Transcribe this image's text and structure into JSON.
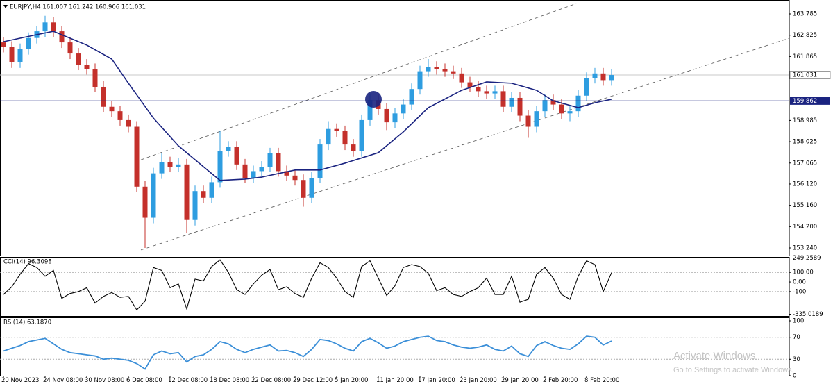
{
  "chart_data": [
    {
      "type": "candlestick",
      "title": "EURJPY,H4  161.007 161.242 160.906 161.031",
      "up_color": "#2e9de0",
      "down_color": "#c4302b",
      "xlim": [
        -0.4167,
        94.3333
      ],
      "xticks": [
        {
          "value": 0,
          "label": "20 Nov 2023"
        },
        {
          "value": 5,
          "label": "24 Nov 08:00"
        },
        {
          "value": 10,
          "label": "30 Nov 08:00"
        },
        {
          "value": 15,
          "label": "6 Dec 08:00"
        },
        {
          "value": 20,
          "label": "12 Dec 08:00"
        },
        {
          "value": 25,
          "label": "18 Dec 08:00"
        },
        {
          "value": 30,
          "label": "22 Dec 08:00"
        },
        {
          "value": 35,
          "label": "29 Dec 12:00"
        },
        {
          "value": 40,
          "label": "5 Jan 20:00"
        },
        {
          "value": 45,
          "label": "11 Jan 20:00"
        },
        {
          "value": 50,
          "label": "17 Jan 20:00"
        },
        {
          "value": 55,
          "label": "23 Jan 20:00"
        },
        {
          "value": 60,
          "label": "29 Jan 20:00"
        },
        {
          "value": 65,
          "label": "2 Feb 20:00"
        },
        {
          "value": 70,
          "label": "8 Feb 20:00"
        }
      ],
      "ylim": [
        152.896,
        164.411
      ],
      "yticks": [
        163.785,
        162.825,
        161.865,
        158.985,
        158.025,
        157.065,
        {
          "value": 156.12,
          "label": "156.120"
        },
        {
          "value": 155.16,
          "label": "155.160"
        },
        {
          "value": 154.2,
          "label": "154.200"
        },
        {
          "value": 153.24,
          "label": "153.240"
        }
      ],
      "open": [
        162.5,
        162.3,
        161.6,
        162.2,
        162.7,
        163.0,
        163.4,
        163.0,
        162.5,
        162.0,
        161.5,
        161.3,
        160.5,
        159.6,
        159.4,
        159.0,
        158.7,
        156.0,
        154.6,
        156.6,
        157.1,
        156.9,
        157.0,
        154.5,
        155.8,
        155.5,
        156.2,
        157.6,
        157.8,
        157.0,
        156.4,
        156.7,
        156.9,
        157.5,
        156.7,
        156.5,
        156.3,
        155.5,
        156.4,
        157.9,
        158.6,
        158.5,
        157.9,
        157.6,
        159.0,
        159.9,
        159.5,
        158.9,
        159.3,
        159.7,
        160.4,
        161.2,
        161.4,
        161.3,
        161.2,
        161.1,
        160.7,
        160.5,
        160.3,
        160.2,
        160.3,
        159.6,
        160.0,
        159.2,
        158.7,
        159.4,
        159.9,
        159.7,
        159.3,
        159.4,
        160.1,
        160.9,
        161.1,
        160.8
      ],
      "high": [
        162.75,
        162.55,
        162.45,
        162.95,
        163.25,
        163.7,
        163.65,
        163.25,
        162.75,
        162.25,
        161.75,
        161.55,
        160.75,
        159.85,
        159.65,
        159.25,
        158.95,
        156.25,
        156.85,
        157.5,
        157.35,
        157.3,
        157.25,
        156.05,
        156.05,
        156.45,
        158.5,
        158.05,
        158.05,
        157.25,
        156.95,
        157.15,
        157.75,
        157.75,
        156.95,
        156.75,
        156.55,
        156.65,
        158.15,
        158.95,
        158.85,
        158.75,
        158.15,
        159.25,
        160.2,
        160.15,
        159.75,
        159.55,
        159.95,
        160.65,
        161.45,
        161.75,
        161.65,
        161.55,
        161.45,
        161.35,
        160.95,
        160.75,
        160.55,
        160.55,
        160.55,
        160.25,
        160.25,
        159.45,
        159.65,
        160.15,
        160.15,
        159.95,
        159.65,
        160.35,
        161.15,
        161.35,
        161.35,
        161.3
      ],
      "low": [
        162.05,
        161.35,
        161.35,
        161.95,
        162.45,
        162.75,
        162.75,
        162.25,
        161.75,
        161.25,
        161.05,
        160.25,
        159.35,
        159.15,
        158.75,
        158.45,
        155.75,
        153.24,
        154.35,
        156.35,
        156.65,
        156.65,
        153.9,
        154.25,
        155.25,
        155.25,
        155.95,
        157.35,
        156.75,
        156.15,
        156.15,
        156.45,
        156.65,
        156.45,
        156.25,
        156.05,
        155.1,
        155.25,
        156.15,
        157.65,
        158.25,
        157.65,
        157.35,
        157.35,
        158.75,
        159.25,
        158.55,
        158.65,
        159.05,
        159.45,
        160.15,
        160.95,
        161.05,
        160.95,
        160.85,
        160.45,
        160.25,
        160.05,
        159.95,
        159.95,
        159.35,
        159.35,
        158.95,
        158.2,
        158.45,
        159.15,
        159.45,
        159.05,
        158.95,
        159.15,
        159.85,
        160.65,
        160.55,
        160.55
      ],
      "close": [
        162.3,
        161.6,
        162.2,
        162.7,
        163.0,
        163.4,
        163.0,
        162.5,
        162.0,
        161.5,
        161.3,
        160.5,
        159.6,
        159.4,
        159.0,
        158.7,
        156.0,
        154.6,
        156.6,
        157.1,
        156.9,
        157.0,
        154.5,
        155.8,
        155.5,
        156.2,
        157.6,
        157.8,
        157.0,
        156.4,
        156.7,
        156.9,
        157.5,
        156.7,
        156.5,
        156.3,
        155.5,
        156.4,
        157.9,
        158.6,
        158.5,
        157.9,
        157.6,
        159.0,
        159.9,
        159.5,
        158.9,
        159.3,
        159.7,
        160.4,
        161.2,
        161.4,
        161.3,
        161.2,
        161.1,
        160.7,
        160.5,
        160.3,
        160.2,
        160.3,
        159.6,
        160.0,
        159.2,
        158.7,
        159.4,
        159.9,
        159.7,
        159.3,
        159.4,
        160.1,
        160.9,
        161.1,
        160.8,
        161.03
      ],
      "ma": {
        "color": "#1a2380",
        "x": [
          0,
          4,
          6,
          10,
          13,
          15,
          18,
          21,
          24,
          26,
          29,
          31,
          35,
          38,
          41,
          45,
          48,
          51,
          55,
          58,
          61,
          64,
          66,
          69,
          71,
          73
        ],
        "values": [
          162.53,
          162.85,
          163.0,
          162.38,
          161.75,
          160.66,
          159.09,
          157.84,
          156.9,
          156.28,
          156.34,
          156.43,
          156.75,
          156.75,
          157.06,
          157.53,
          158.47,
          159.56,
          160.34,
          160.72,
          160.66,
          160.34,
          159.87,
          159.56,
          159.78,
          159.94
        ]
      },
      "channel": [
        {
          "x": [
            16.5,
            68.75
          ],
          "values": [
            157.21,
            164.25
          ]
        },
        {
          "x": [
            16.5,
            94.33
          ],
          "values": [
            153.15,
            162.69
          ]
        }
      ],
      "hlines": [
        159.862
      ],
      "hline_color": "#1a2380",
      "last_price": 161.031
    },
    {
      "type": "line",
      "title": "CCI(14) 96.3098",
      "color": "#000000",
      "ylim": [
        -335.0189,
        249.2589
      ],
      "yticks": [
        249.2589,
        {
          "value": 100,
          "label": "100.00"
        },
        {
          "value": 0,
          "label": "0.00"
        },
        -100,
        -335.0189
      ],
      "levels": [
        100,
        -100
      ],
      "values": [
        -130,
        -50,
        80,
        190,
        150,
        60,
        120,
        -170,
        -120,
        -100,
        -60,
        -220,
        -150,
        -110,
        -160,
        -150,
        -290,
        -200,
        150,
        120,
        -60,
        -20,
        -280,
        30,
        10,
        160,
        230,
        100,
        -80,
        -130,
        -20,
        70,
        130,
        -80,
        -50,
        -120,
        -160,
        40,
        200,
        150,
        40,
        -100,
        -160,
        160,
        220,
        40,
        -140,
        -40,
        150,
        180,
        160,
        90,
        -90,
        -60,
        -130,
        -150,
        -100,
        -60,
        40,
        -130,
        -130,
        60,
        -210,
        -180,
        80,
        150,
        40,
        -130,
        -180,
        60,
        220,
        180,
        -100,
        96.31
      ]
    },
    {
      "type": "line",
      "title": "RSI(14) 63.1870",
      "color": "#3b8fd8",
      "ylim": [
        0,
        100
      ],
      "yticks": [
        100,
        70,
        30,
        0
      ],
      "levels": [
        70,
        30
      ],
      "values": [
        45,
        50,
        55,
        62,
        65,
        68,
        58,
        48,
        42,
        40,
        38,
        36,
        30,
        32,
        30,
        28,
        22,
        12,
        38,
        45,
        40,
        42,
        25,
        35,
        38,
        48,
        62,
        58,
        48,
        42,
        48,
        52,
        56,
        45,
        46,
        42,
        35,
        48,
        66,
        64,
        58,
        50,
        45,
        62,
        68,
        60,
        50,
        54,
        62,
        66,
        70,
        72,
        64,
        62,
        56,
        52,
        50,
        52,
        56,
        48,
        45,
        54,
        40,
        35,
        55,
        62,
        55,
        50,
        48,
        58,
        72,
        70,
        56,
        63.19
      ]
    }
  ],
  "watermark": {
    "title": "Activate Windows",
    "subtitle": "Go to Settings to activate Windows."
  }
}
